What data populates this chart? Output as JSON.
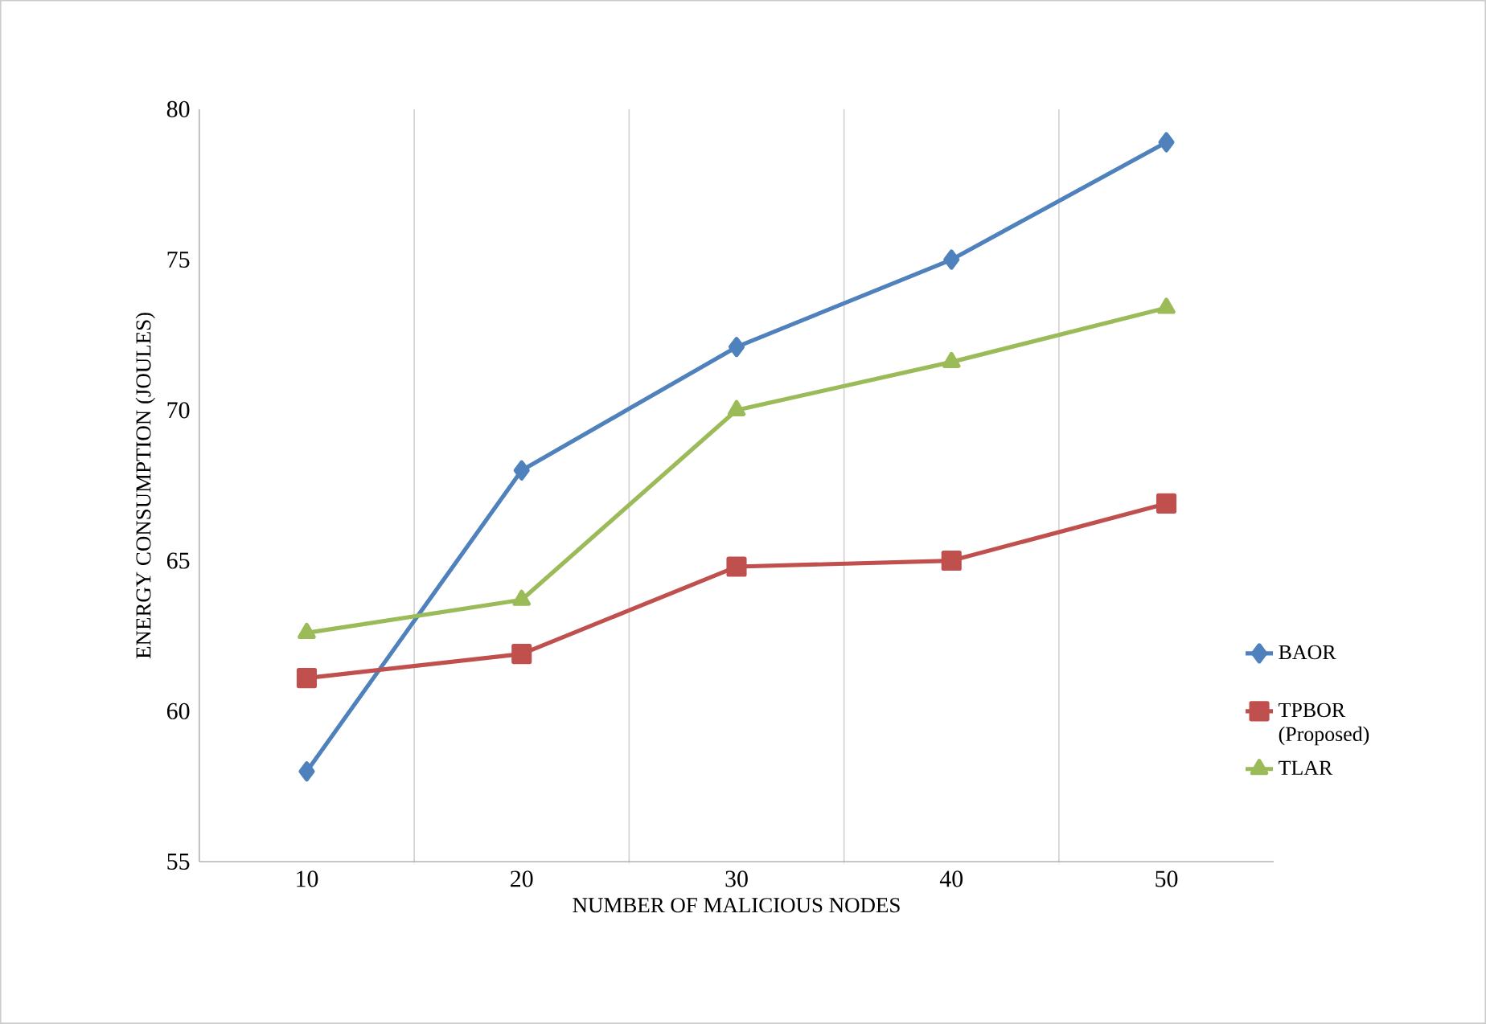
{
  "chart_data": {
    "type": "line",
    "xlabel": "NUMBER OF MALICIOUS NODES",
    "ylabel": "ENERGY CONSUMPTION (JOULES)",
    "categories": [
      "10",
      "20",
      "30",
      "40",
      "50"
    ],
    "series": [
      {
        "name": "BAOR",
        "color": "#4f81bd",
        "marker": "diamond",
        "values": [
          58,
          68,
          72.1,
          75.0,
          78.9
        ]
      },
      {
        "name": "TPBOR (Proposed)",
        "color": "#c0504d",
        "marker": "square",
        "values": [
          61.1,
          61.9,
          64.8,
          65.0,
          66.9
        ]
      },
      {
        "name": "TLAR",
        "color": "#9bbb59",
        "marker": "triangle",
        "values": [
          62.6,
          63.7,
          70.0,
          71.6,
          73.4
        ]
      }
    ],
    "ylim": [
      55,
      80
    ],
    "yticks": [
      55,
      60,
      65,
      70,
      75,
      80
    ],
    "grid": "x",
    "legend": "right",
    "line_style": "solid"
  }
}
